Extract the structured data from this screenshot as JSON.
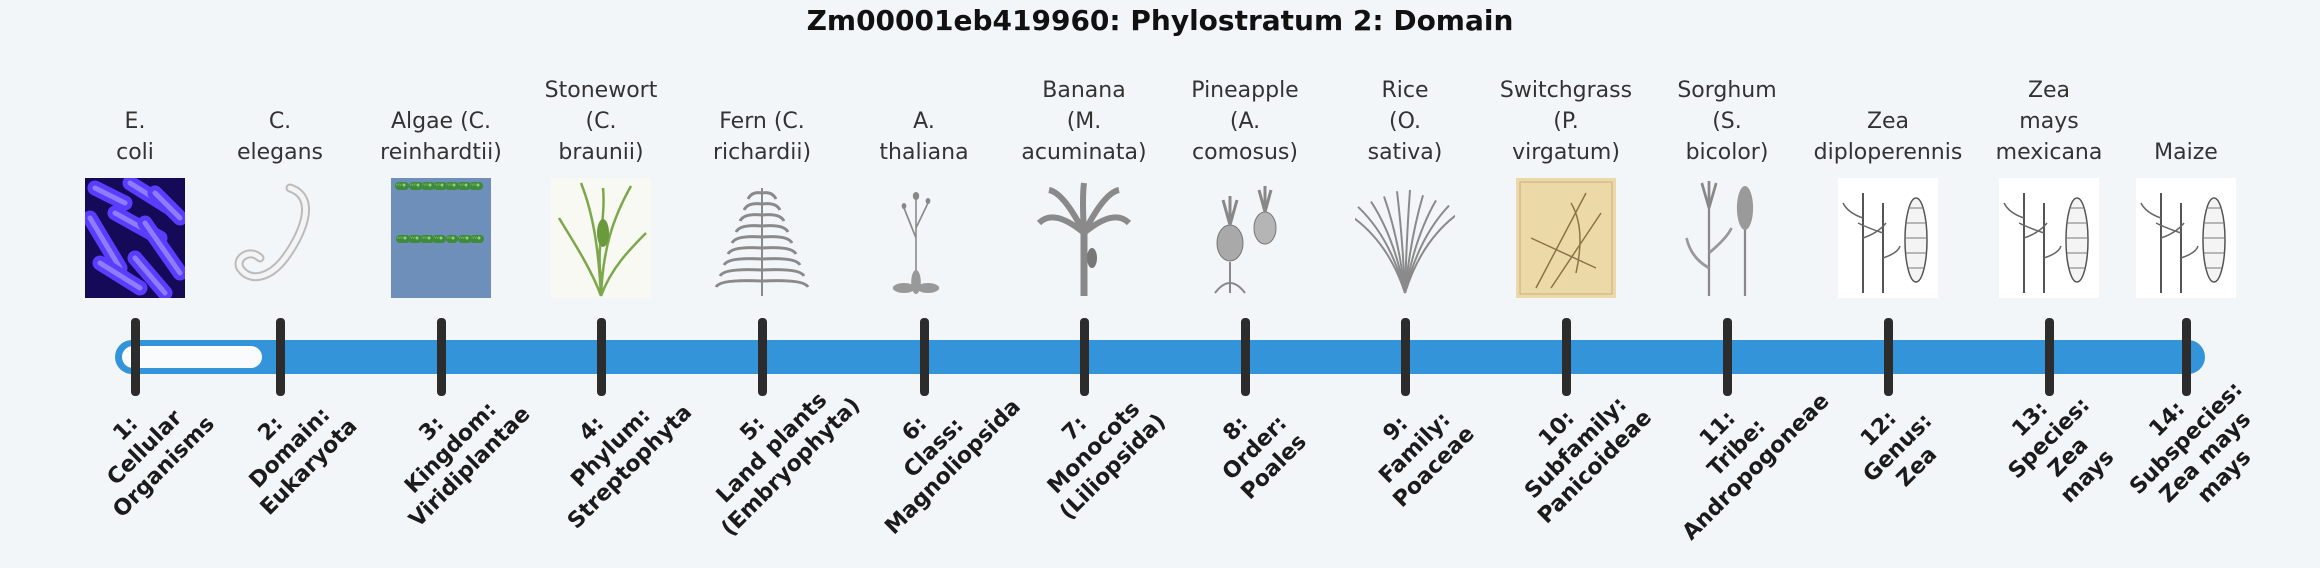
{
  "title": "Zm00001eb419960: Phylostratum 2: Domain",
  "current_stratum": 2,
  "stages": [
    {
      "label": "1:",
      "name_lines": [
        "Cellular",
        "Organisms"
      ],
      "organism_lines": [
        "E.",
        "coli"
      ],
      "icon": "e-coli-bacteria-image"
    },
    {
      "label": "2:",
      "name_lines": [
        "Domain:",
        "Eukaryota"
      ],
      "organism_lines": [
        "C.",
        "elegans"
      ],
      "icon": "nematode-worm-image"
    },
    {
      "label": "3:",
      "name_lines": [
        "Kingdom:",
        "Viridiplantae"
      ],
      "organism_lines": [
        "Algae (C.",
        "reinhardtii)"
      ],
      "icon": "green-algae-image"
    },
    {
      "label": "4:",
      "name_lines": [
        "Phylum:",
        "Streptophyta"
      ],
      "organism_lines": [
        "Stonewort",
        "(C.",
        "braunii)"
      ],
      "icon": "stonewort-image"
    },
    {
      "label": "5:",
      "name_lines": [
        "Land plants",
        "(Embryophyta)"
      ],
      "organism_lines": [
        "Fern (C.",
        "richardii)"
      ],
      "icon": "fern-frond-image"
    },
    {
      "label": "6:",
      "name_lines": [
        "Class:",
        "Magnoliopsida"
      ],
      "organism_lines": [
        "A.",
        "thaliana"
      ],
      "icon": "arabidopsis-image"
    },
    {
      "label": "7:",
      "name_lines": [
        "Monocots",
        "(Liliopsida)"
      ],
      "organism_lines": [
        "Banana",
        "(M.",
        "acuminata)"
      ],
      "icon": "banana-plant-image"
    },
    {
      "label": "8:",
      "name_lines": [
        "Order:",
        "Poales"
      ],
      "organism_lines": [
        "Pineapple",
        "(A.",
        "comosus)"
      ],
      "icon": "pineapple-image"
    },
    {
      "label": "9:",
      "name_lines": [
        "Family:",
        "Poaceae"
      ],
      "organism_lines": [
        "Rice",
        "(O.",
        "sativa)"
      ],
      "icon": "rice-plant-image"
    },
    {
      "label": "10:",
      "name_lines": [
        "Subfamily:",
        "Panicoideae"
      ],
      "organism_lines": [
        "Switchgrass",
        "(P.",
        "virgatum)"
      ],
      "icon": "switchgrass-botanical-plate-image"
    },
    {
      "label": "11:",
      "name_lines": [
        "Tribe:",
        "Andropogoneae"
      ],
      "organism_lines": [
        "Sorghum",
        "(S.",
        "bicolor)"
      ],
      "icon": "sorghum-image"
    },
    {
      "label": "12:",
      "name_lines": [
        "Genus:",
        "Zea"
      ],
      "organism_lines": [
        "Zea",
        "diploperennis"
      ],
      "icon": "zea-diploperennis-image"
    },
    {
      "label": "13:",
      "name_lines": [
        "Species:",
        "Zea",
        "mays"
      ],
      "organism_lines": [
        "Zea",
        "mays",
        "mexicana"
      ],
      "icon": "zea-mays-mexicana-image"
    },
    {
      "label": "14:",
      "name_lines": [
        "Subspecies:",
        "Zea mays",
        "mays"
      ],
      "organism_lines": [
        "Maize"
      ],
      "icon": "maize-image"
    }
  ]
}
